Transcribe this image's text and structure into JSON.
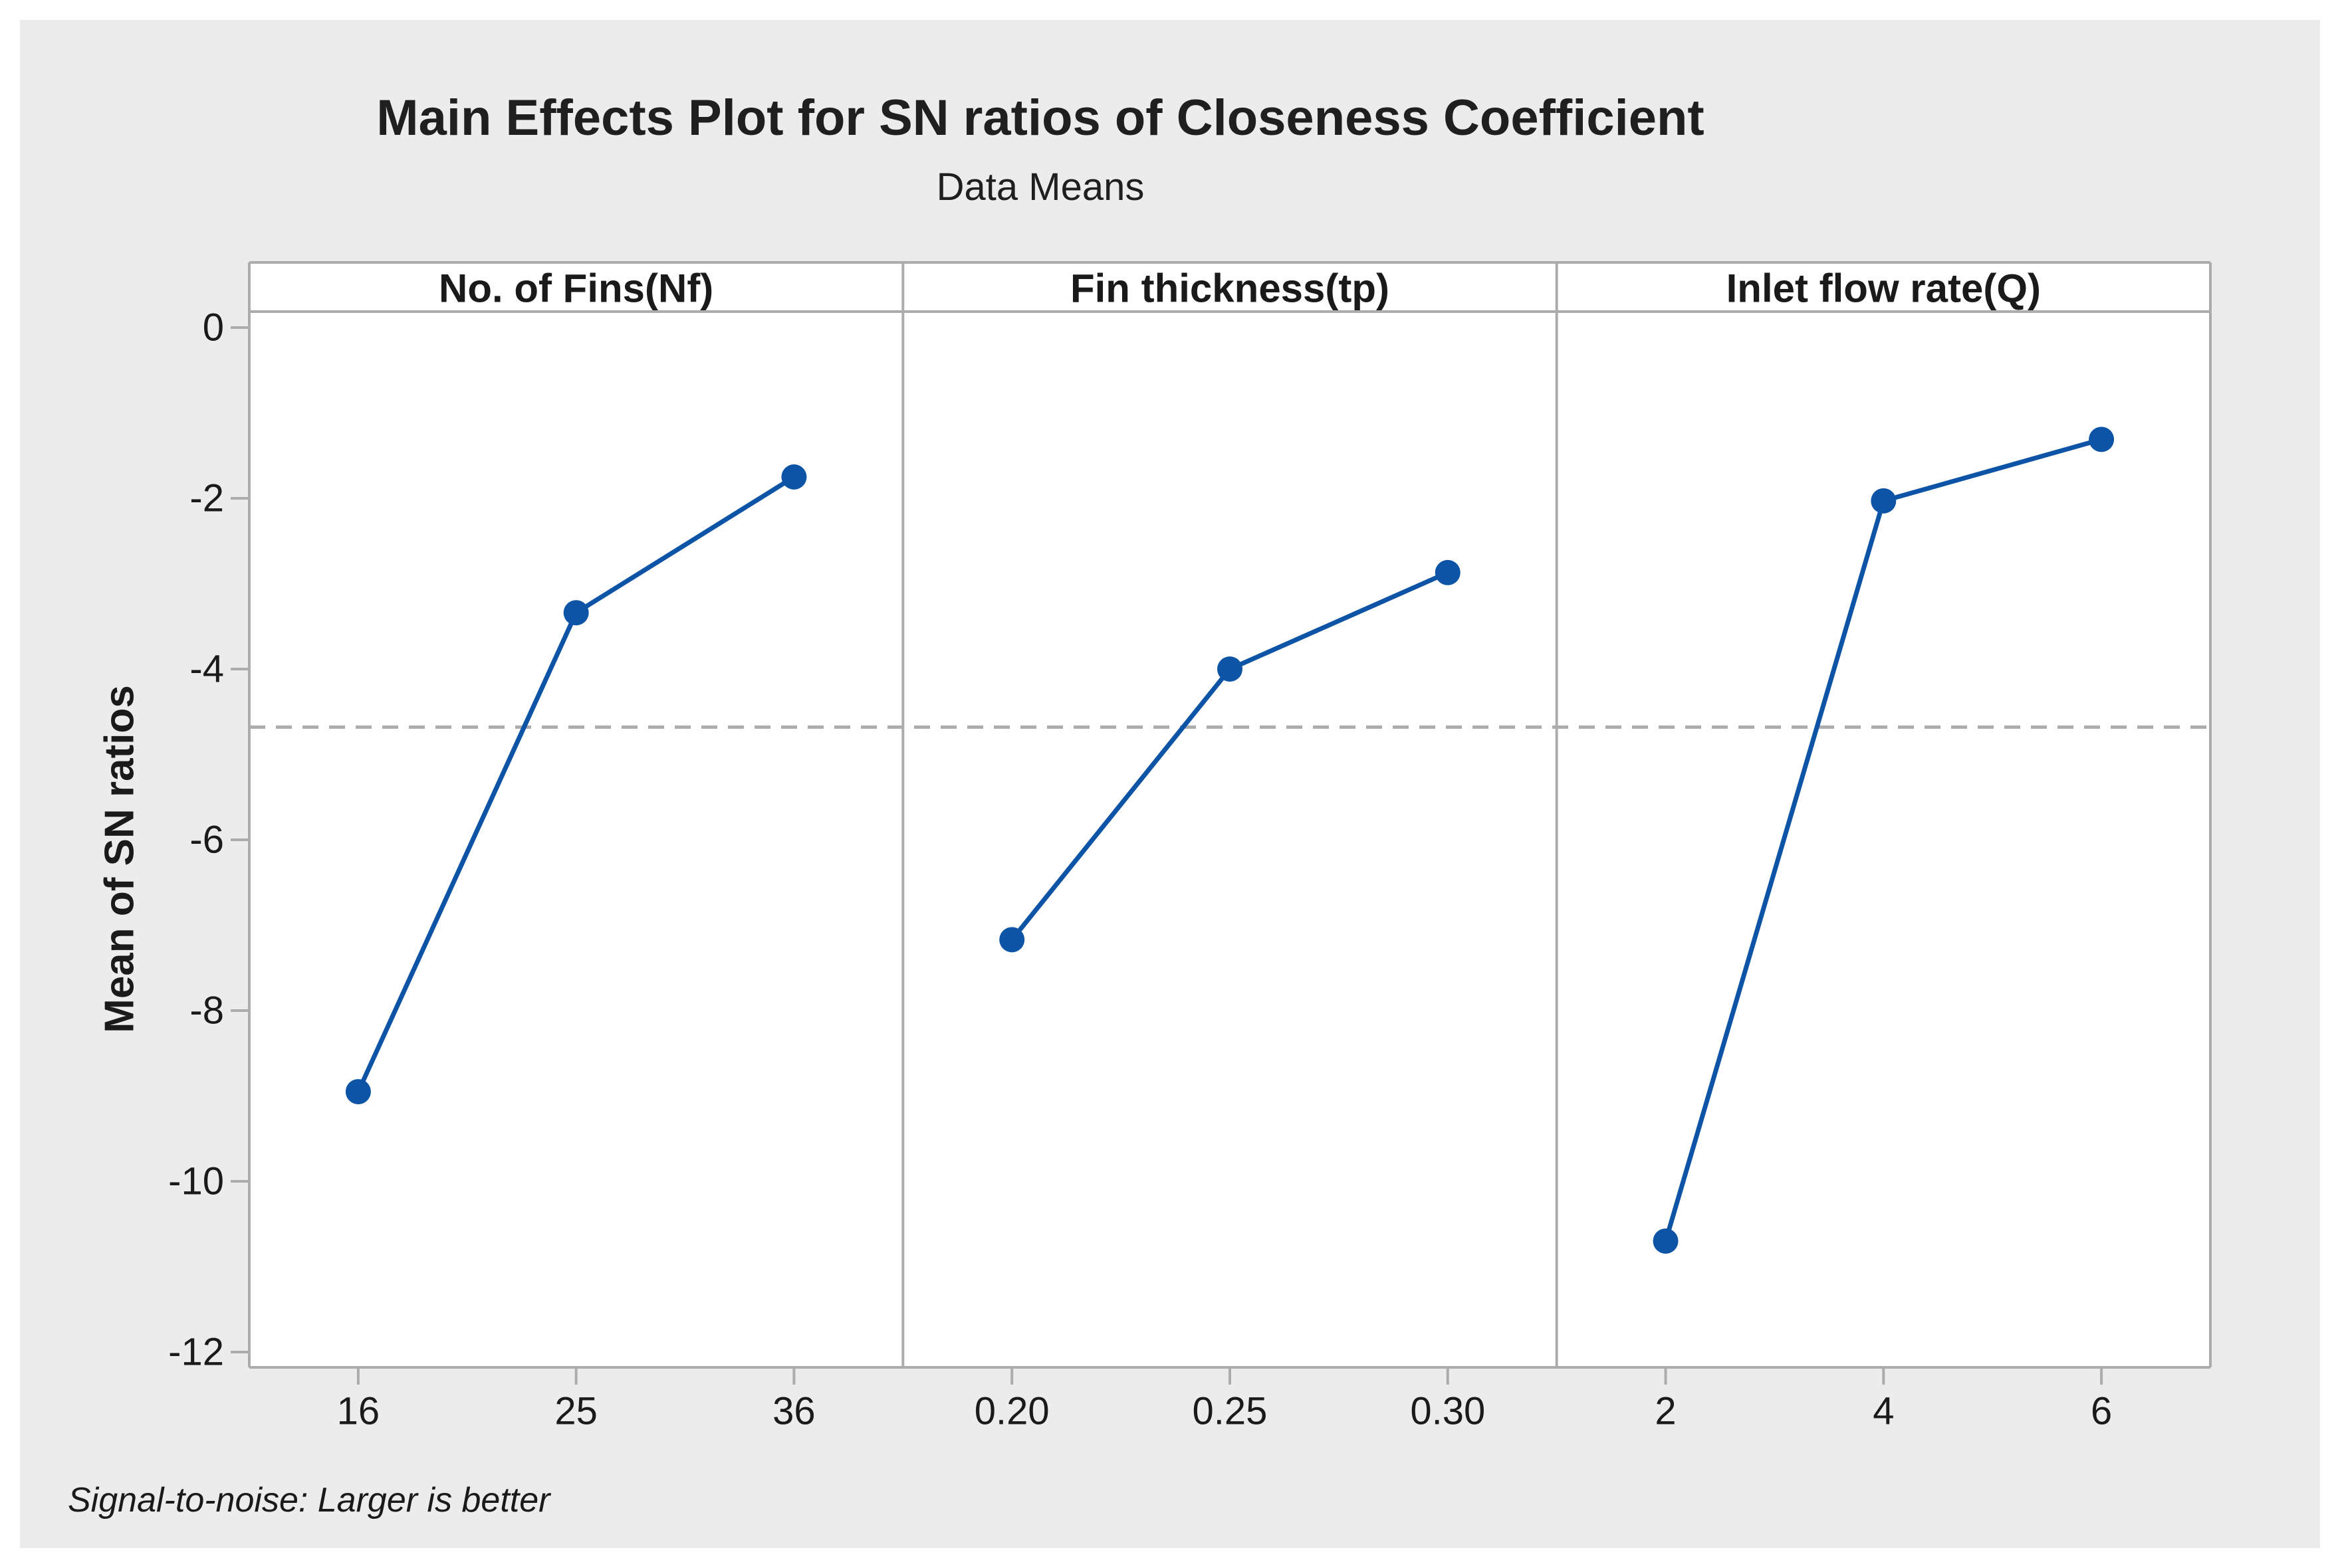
{
  "title": "Main Effects Plot for SN ratios of Closeness Coefficient",
  "subtitle": "Data Means",
  "ylabel": "Mean of SN ratios",
  "footnote": "Signal-to-noise: Larger is better",
  "colors": {
    "line": "#0D54A6",
    "marker": "#0D54A6",
    "border": "#ACACAC",
    "tick": "#ACACAC",
    "reference_line": "#ACACAC",
    "canvas_bg": "#ECECEC",
    "plot_bg": "#FFFFFF",
    "text": "#1A1A1A"
  },
  "chart_data": {
    "type": "line",
    "title": "Main Effects Plot for SN ratios of Closeness Coefficient",
    "subtitle": "Data Means",
    "ylabel": "Mean of SN ratios",
    "footnote": "Signal-to-noise: Larger is better",
    "ylim": [
      -12,
      0
    ],
    "yticks": [
      0,
      -2,
      -4,
      -6,
      -8,
      -10,
      -12
    ],
    "reference_mean": -4.68,
    "grid": "off",
    "legend": "none",
    "panels": [
      {
        "label": "No. of Fins(Nf)",
        "categories": [
          "16",
          "25",
          "36"
        ],
        "values": [
          -8.95,
          -3.34,
          -1.75
        ]
      },
      {
        "label": "Fin thickness(tp)",
        "categories": [
          "0.20",
          "0.25",
          "0.30"
        ],
        "values": [
          -7.17,
          -4.0,
          -2.87
        ]
      },
      {
        "label": "Inlet flow rate(Q)",
        "categories": [
          "2",
          "4",
          "6"
        ],
        "values": [
          -10.7,
          -2.03,
          -1.31
        ]
      }
    ]
  }
}
